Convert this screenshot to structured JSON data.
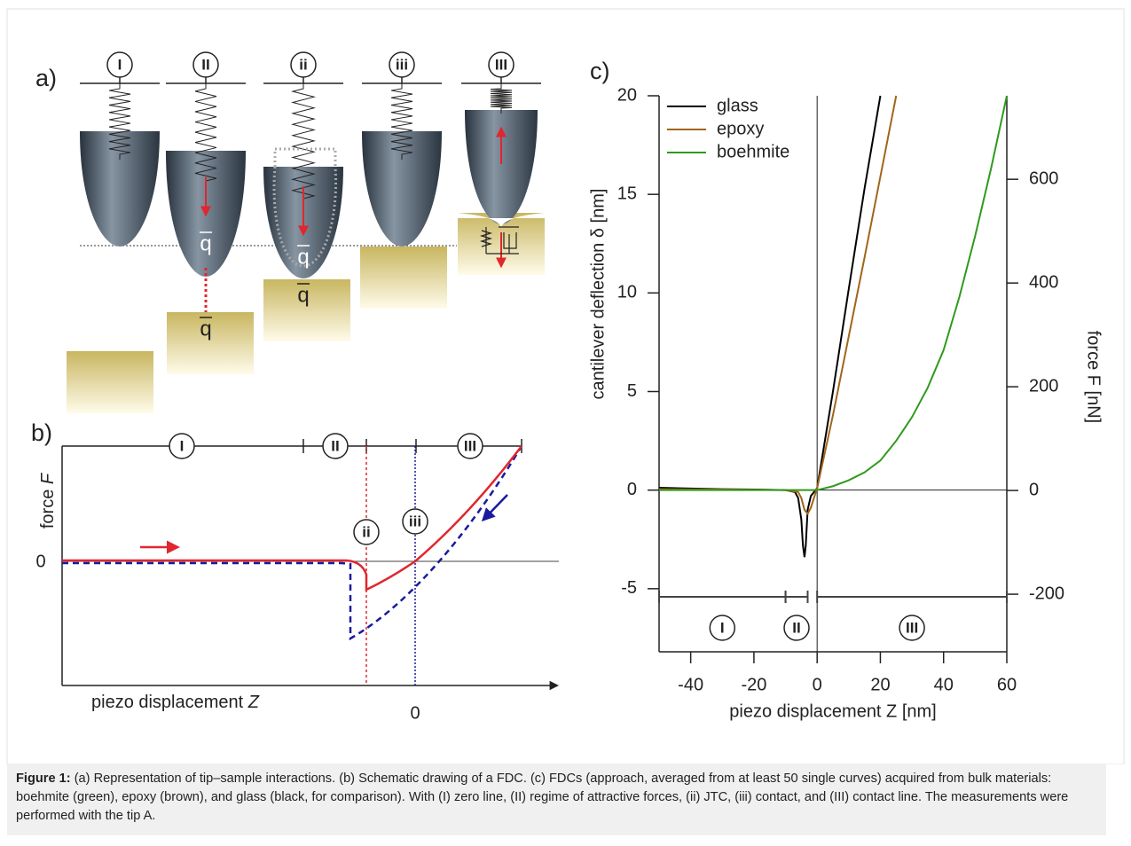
{
  "panel_a": {
    "label": "a)",
    "stages": [
      "I",
      "II",
      "ii",
      "iii",
      "III"
    ],
    "vector_label": "q"
  },
  "panel_b": {
    "label": "b)",
    "y_axis_label": "force",
    "y_axis_var": "F",
    "zero_label_y": "0",
    "x_axis_label": "piezo displacement",
    "x_axis_var": "Z",
    "zero_label_x": "0",
    "regions": [
      "I",
      "II",
      "III"
    ],
    "points": [
      "ii",
      "iii"
    ]
  },
  "chart_data": {
    "type": "line",
    "panel_label": "c)",
    "x_label": "piezo displacement Z [nm]",
    "y_label": "cantilever deflection δ [nm]",
    "y2_label": "force F [nN]",
    "xlim": [
      -50,
      60
    ],
    "xticks": [
      -40,
      -20,
      0,
      20,
      40,
      60
    ],
    "ylim": [
      -8.2,
      20
    ],
    "yticks": [
      -5,
      0,
      5,
      10,
      15,
      20
    ],
    "y2lim": [
      -311,
      761
    ],
    "y2ticks": [
      -200,
      0,
      200,
      400,
      600
    ],
    "legend": "top-left",
    "series": [
      {
        "name": "glass",
        "color": "#000000",
        "x": [
          -50,
          -40,
          -30,
          -20,
          -10,
          -7,
          -6,
          -5,
          -4.5,
          -4,
          -3.6,
          -3,
          -2,
          -1,
          0,
          5,
          10,
          15,
          20
        ],
        "values": [
          0.12,
          0.08,
          0.05,
          0.03,
          0.0,
          -0.1,
          -0.4,
          -1.5,
          -2.8,
          -3.4,
          -2.8,
          -1.0,
          -0.3,
          -0.1,
          0.1,
          5.0,
          10.2,
          15.3,
          20
        ]
      },
      {
        "name": "epoxy",
        "color": "#a0661a",
        "x": [
          -50,
          -30,
          -10,
          -6,
          -5,
          -4,
          -3,
          -2,
          -1,
          0,
          5,
          10,
          15,
          20,
          25
        ],
        "values": [
          0.05,
          0.03,
          0.0,
          -0.1,
          -0.4,
          -1.0,
          -1.2,
          -0.9,
          -0.4,
          0.1,
          3.8,
          7.8,
          11.8,
          15.9,
          20
        ]
      },
      {
        "name": "boehmite",
        "color": "#2f9a1c",
        "x": [
          -50,
          -20,
          -10,
          0,
          5,
          10,
          15,
          20,
          25,
          30,
          35,
          40,
          45,
          50,
          55,
          60
        ],
        "values": [
          0,
          0,
          0,
          0,
          0.2,
          0.5,
          0.9,
          1.5,
          2.5,
          3.7,
          5.2,
          7.1,
          9.8,
          12.9,
          16.3,
          20
        ]
      }
    ],
    "regions": [
      {
        "label": "I",
        "from": -50,
        "to": -10
      },
      {
        "label": "II",
        "from": -10,
        "to": -3
      },
      {
        "label": "III",
        "from": 0,
        "to": 60
      }
    ]
  },
  "caption": {
    "lead": "Figure 1:",
    "text": "(a) Representation of tip–sample interactions. (b) Schematic drawing of a FDC. (c) FDCs (approach, averaged from at least 50 single curves) acquired from bulk materials: boehmite (green), epoxy (brown), and glass (black, for comparison). With (I) zero line, (II) regime of attractive forces, (ii) JTC, (iii) contact, and (III) contact line. The measurements were performed with the tip A."
  }
}
